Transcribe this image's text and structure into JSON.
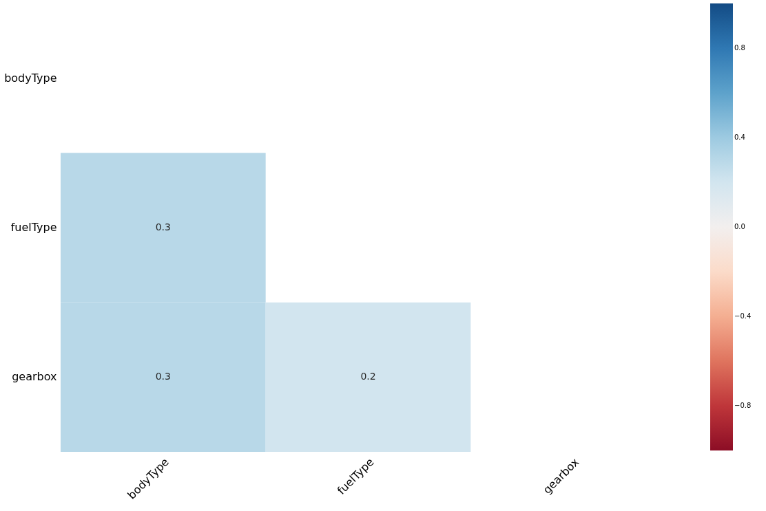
{
  "chart_data": {
    "type": "heatmap",
    "categories": [
      "bodyType",
      "fuelType",
      "gearbox"
    ],
    "y_categories": [
      "bodyType",
      "fuelType",
      "gearbox"
    ],
    "cells": [
      [
        null,
        null,
        null
      ],
      [
        0.3,
        null,
        null
      ],
      [
        0.3,
        0.2,
        null
      ]
    ],
    "clim": [
      -1,
      1
    ],
    "cticks": [
      {
        "value": -0.8,
        "label": "−0.8"
      },
      {
        "value": -0.4,
        "label": "−0.4"
      },
      {
        "value": 0,
        "label": "0.0"
      },
      {
        "value": 0.4,
        "label": "0.4"
      },
      {
        "value": 0.8,
        "label": "0.8"
      }
    ],
    "data_labels": true,
    "grid": false
  }
}
